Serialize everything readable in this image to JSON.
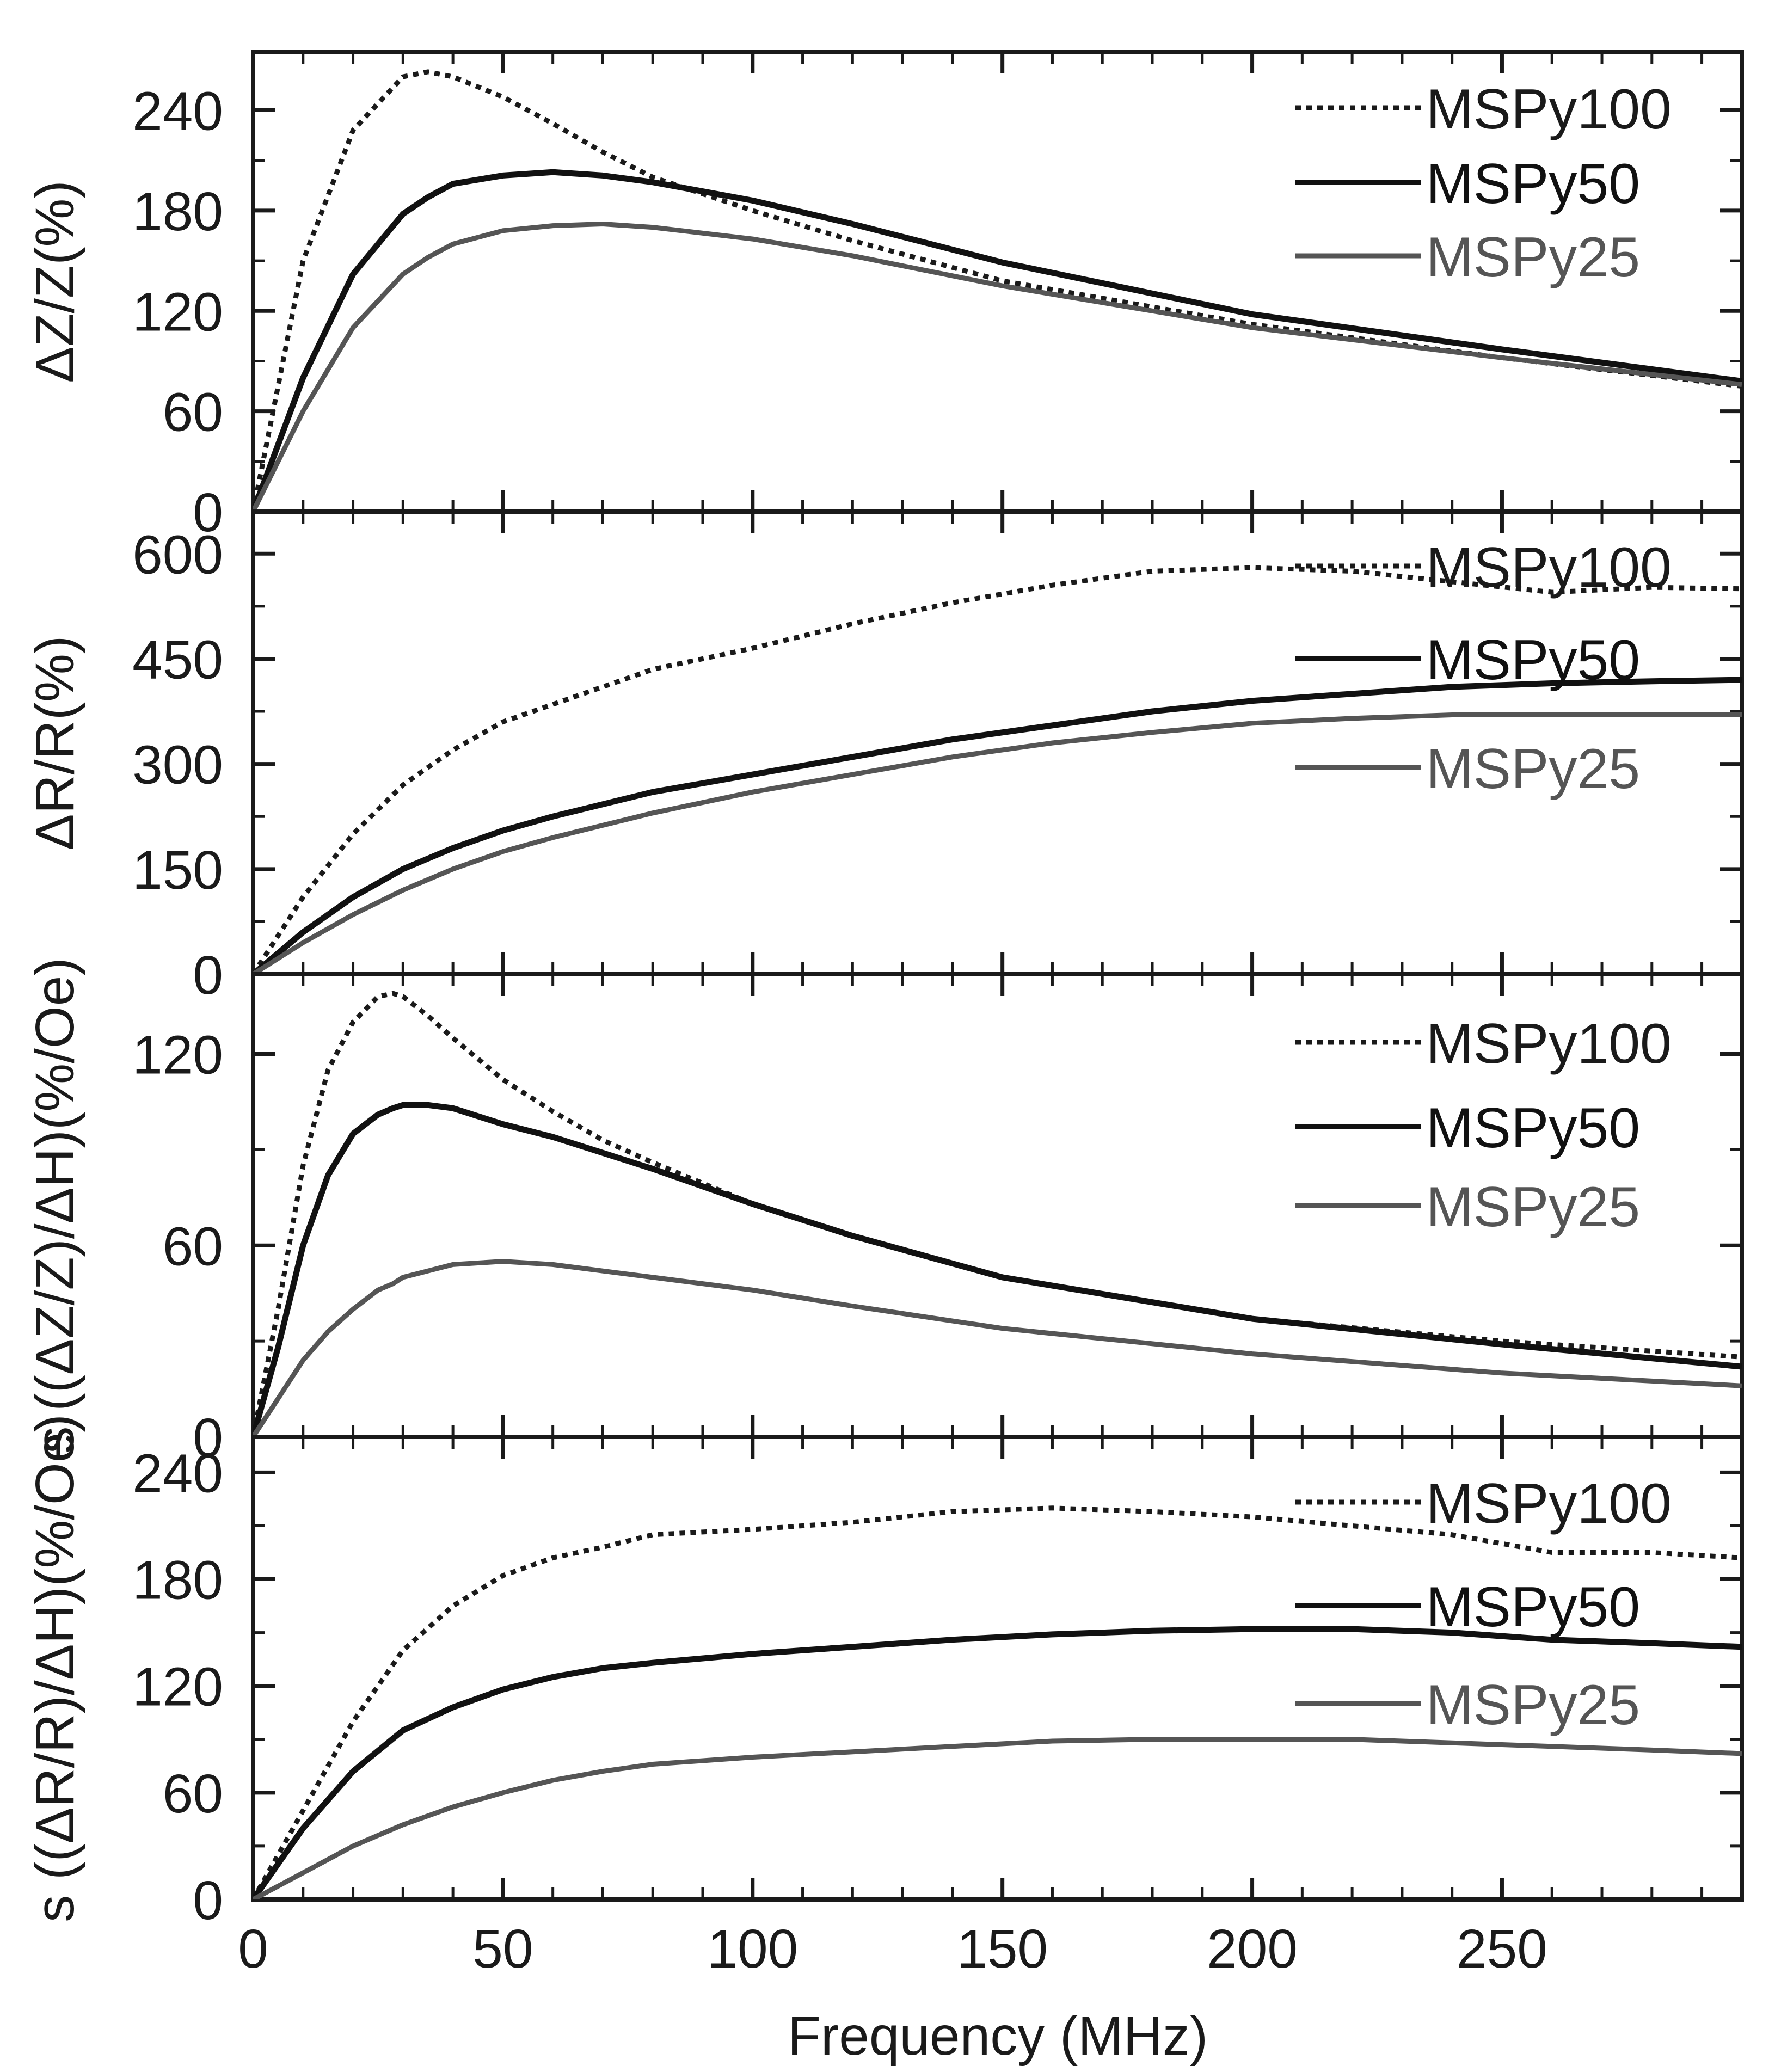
{
  "figure": {
    "xlabel": "Frequency (MHz)",
    "xlim": [
      0,
      298
    ],
    "xticks": [
      "0",
      "50",
      "100",
      "150",
      "200",
      "250"
    ],
    "colors": {
      "MSPy100": "#1a1a1a",
      "MSPy50": "#111111",
      "MSPy25": "#555555",
      "axis": "#1a1a1a"
    }
  },
  "chart_data": [
    {
      "type": "line",
      "ylabel": "ΔZ/Z(%)",
      "ylim": [
        0,
        275
      ],
      "yticks": [
        "0",
        "60",
        "120",
        "180",
        "240"
      ],
      "x": [
        0,
        10,
        20,
        30,
        35,
        40,
        50,
        60,
        70,
        80,
        100,
        120,
        150,
        200,
        250,
        298
      ],
      "series": [
        {
          "name": "MSPy100",
          "style": "dotted",
          "values": [
            0,
            150,
            228,
            260,
            263,
            260,
            248,
            232,
            215,
            200,
            180,
            162,
            138,
            112,
            92,
            75
          ]
        },
        {
          "name": "MSPy50",
          "style": "solid",
          "values": [
            0,
            80,
            142,
            178,
            188,
            196,
            201,
            203,
            201,
            197,
            186,
            172,
            149,
            118,
            97,
            78
          ]
        },
        {
          "name": "MSPy25",
          "style": "solid",
          "values": [
            0,
            60,
            110,
            142,
            152,
            160,
            168,
            171,
            172,
            170,
            163,
            153,
            135,
            110,
            92,
            76
          ]
        }
      ],
      "legend": [
        "MSPy100",
        "MSPy50",
        "MSPy25"
      ]
    },
    {
      "type": "line",
      "ylabel": "ΔR/R(%)",
      "ylim": [
        0,
        660
      ],
      "yticks": [
        "0",
        "150",
        "300",
        "450",
        "600"
      ],
      "x": [
        0,
        10,
        20,
        30,
        40,
        50,
        60,
        80,
        100,
        120,
        140,
        160,
        180,
        200,
        220,
        240,
        260,
        280,
        298
      ],
      "series": [
        {
          "name": "MSPy100",
          "style": "dotted",
          "values": [
            0,
            110,
            200,
            270,
            320,
            360,
            385,
            435,
            465,
            500,
            530,
            555,
            575,
            580,
            575,
            560,
            545,
            552,
            550
          ]
        },
        {
          "name": "MSPy50",
          "style": "solid",
          "values": [
            0,
            60,
            110,
            150,
            180,
            205,
            225,
            260,
            285,
            310,
            335,
            355,
            375,
            390,
            400,
            410,
            415,
            418,
            420
          ]
        },
        {
          "name": "MSPy25",
          "style": "solid",
          "values": [
            0,
            45,
            85,
            120,
            150,
            175,
            195,
            230,
            260,
            285,
            310,
            330,
            345,
            358,
            365,
            370,
            370,
            370,
            370
          ]
        }
      ],
      "legend": [
        "MSPy100",
        "MSPy50",
        "MSPy25"
      ]
    },
    {
      "type": "line",
      "ylabel": "s ((ΔZ/Z)/ΔH)(%/Oe)",
      "ylim": [
        0,
        145
      ],
      "yticks": [
        "0",
        "60",
        "120"
      ],
      "x": [
        0,
        5,
        10,
        15,
        20,
        25,
        28,
        30,
        35,
        40,
        50,
        60,
        70,
        80,
        100,
        120,
        150,
        200,
        250,
        298
      ],
      "series": [
        {
          "name": "MSPy100",
          "style": "dotted",
          "values": [
            0,
            40,
            85,
            115,
            130,
            138,
            139,
            138,
            132,
            125,
            112,
            102,
            93,
            86,
            73,
            63,
            50,
            37,
            30,
            25
          ]
        },
        {
          "name": "MSPy50",
          "style": "solid",
          "values": [
            0,
            28,
            60,
            82,
            95,
            101,
            103,
            104,
            104,
            103,
            98,
            94,
            89,
            84,
            73,
            63,
            50,
            37,
            29,
            22
          ]
        },
        {
          "name": "MSPy25",
          "style": "solid",
          "values": [
            0,
            12,
            24,
            33,
            40,
            46,
            48,
            50,
            52,
            54,
            55,
            54,
            52,
            50,
            46,
            41,
            34,
            26,
            20,
            16
          ]
        }
      ],
      "legend": [
        "MSPy100",
        "MSPy50",
        "MSPy25"
      ]
    },
    {
      "type": "line",
      "ylabel": "s ((ΔR/R)/ΔH)(%/Oe)",
      "ylim": [
        0,
        260
      ],
      "yticks": [
        "0",
        "60",
        "120",
        "180",
        "240"
      ],
      "x": [
        0,
        10,
        20,
        30,
        40,
        50,
        60,
        70,
        80,
        100,
        120,
        140,
        160,
        180,
        200,
        220,
        240,
        260,
        280,
        298
      ],
      "series": [
        {
          "name": "MSPy100",
          "style": "dotted",
          "values": [
            0,
            50,
            100,
            140,
            165,
            182,
            192,
            198,
            205,
            208,
            212,
            218,
            220,
            218,
            215,
            210,
            205,
            195,
            195,
            192
          ]
        },
        {
          "name": "MSPy50",
          "style": "solid",
          "values": [
            0,
            40,
            72,
            95,
            108,
            118,
            125,
            130,
            133,
            138,
            142,
            146,
            149,
            151,
            152,
            152,
            150,
            146,
            144,
            142
          ]
        },
        {
          "name": "MSPy25",
          "style": "solid",
          "values": [
            0,
            15,
            30,
            42,
            52,
            60,
            67,
            72,
            76,
            80,
            83,
            86,
            89,
            90,
            90,
            90,
            88,
            86,
            84,
            82
          ]
        }
      ],
      "legend": [
        "MSPy100",
        "MSPy50",
        "MSPy25"
      ]
    }
  ]
}
